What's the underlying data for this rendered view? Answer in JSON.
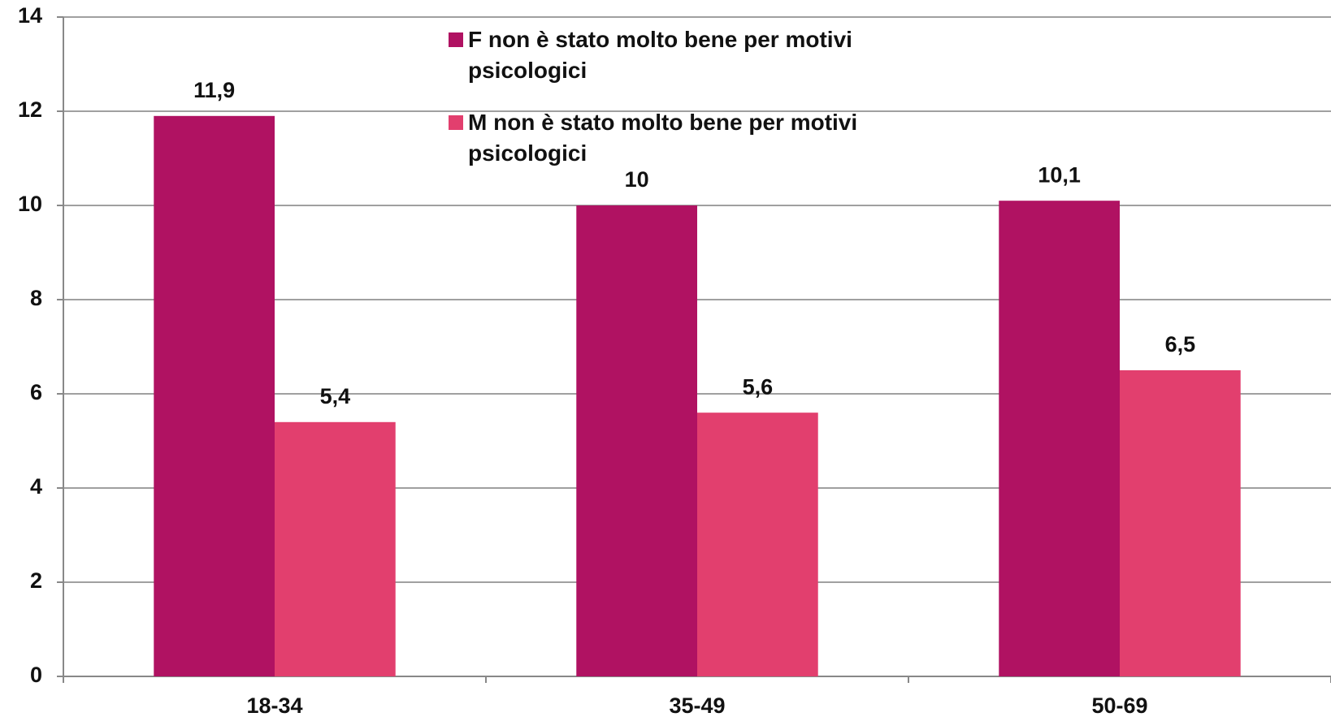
{
  "chart_data": {
    "type": "bar",
    "categories": [
      "18-34",
      "35-49",
      "50-69"
    ],
    "series": [
      {
        "name": "F non è stato molto bene per motivi psicologici",
        "color": "#b01262",
        "values": [
          11.9,
          10,
          10.1
        ],
        "value_labels": [
          "11,9",
          "10",
          "10,1"
        ]
      },
      {
        "name": "M non è stato molto bene per motivi psicologici",
        "color": "#e23f6e",
        "values": [
          5.4,
          5.6,
          6.5
        ],
        "value_labels": [
          "5,4",
          "5,6",
          "6,5"
        ]
      }
    ],
    "ylim": [
      0,
      14
    ],
    "yticks": [
      0,
      2,
      4,
      6,
      8,
      10,
      12,
      14
    ],
    "grid": true
  }
}
